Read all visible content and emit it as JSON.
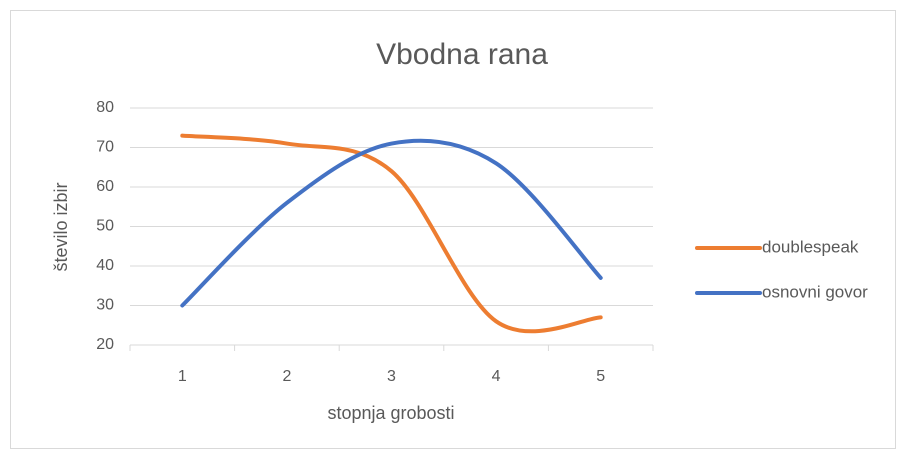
{
  "chart_data": {
    "type": "line",
    "title": "Vbodna rana",
    "x_label": "stopnja grobosti",
    "y_label": "število izbir",
    "categories": [
      "1",
      "2",
      "3",
      "4",
      "5"
    ],
    "series": [
      {
        "name": "doublespeak",
        "color": "#ed7d31",
        "values": [
          73,
          71,
          64,
          26,
          27
        ]
      },
      {
        "name": "osnovni govor",
        "color": "#4472c4",
        "values": [
          30,
          56,
          71,
          66,
          37
        ]
      }
    ],
    "ylim": [
      20,
      80
    ],
    "yticks": [
      20,
      30,
      40,
      50,
      60,
      70,
      80
    ],
    "grid": true,
    "legend": "right"
  }
}
